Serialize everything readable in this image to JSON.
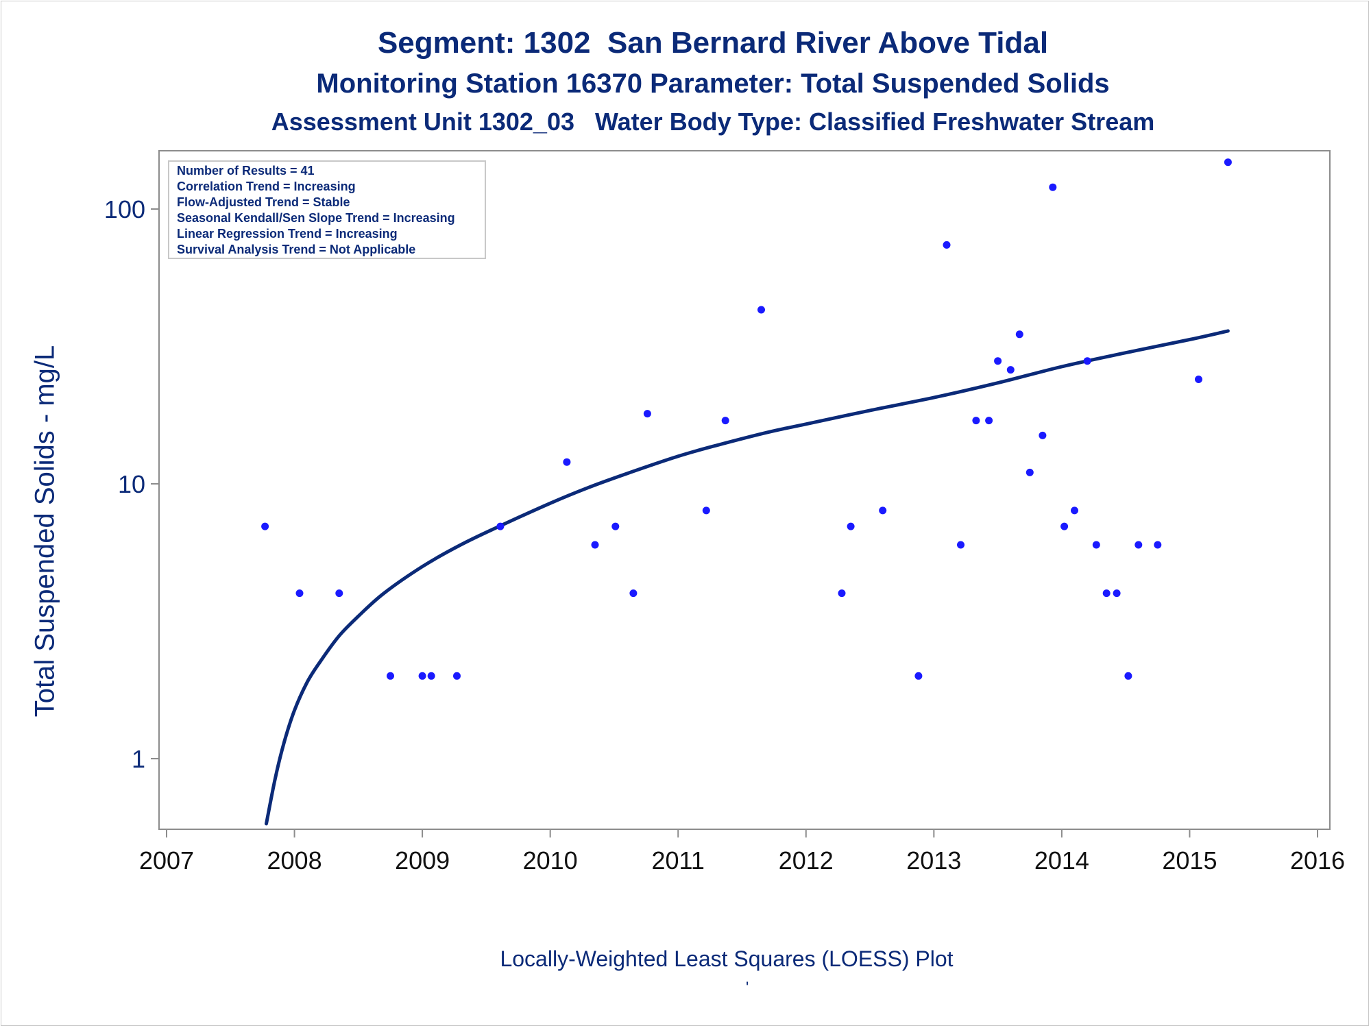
{
  "titles": {
    "line1": "Segment: 1302  San Bernard River Above Tidal",
    "line2": "Monitoring Station 16370 Parameter: Total Suspended Solids",
    "line3": "Assessment Unit 1302_03   Water Body Type: Classified Freshwater Stream"
  },
  "footnote": "Locally-Weighted Least Squares (LOESS) Plot",
  "footmark": "'",
  "colors": {
    "text": "#0b2a78",
    "points": "#1a1aff",
    "curve": "#0b2a78",
    "axis": "#8c8c8c"
  },
  "chart_data": {
    "type": "scatter",
    "title": "Segment: 1302  San Bernard River Above Tidal",
    "ylabel": "Total Suspended Solids - mg/L",
    "xlabel": "",
    "x_scale": "time",
    "y_scale": "log",
    "xlim": [
      2007,
      2016
    ],
    "ylim": [
      0.57,
      160
    ],
    "x_ticks": [
      "2007",
      "2008",
      "2009",
      "2010",
      "2011",
      "2012",
      "2013",
      "2014",
      "2015",
      "2016"
    ],
    "y_ticks": [
      "1",
      "10",
      "100"
    ],
    "grid": false,
    "legend": "none",
    "stats_box": [
      "Number of Results = 41",
      "Correlation Trend = Increasing",
      "Flow-Adjusted Trend = Stable",
      "Seasonal Kendall/Sen Slope Trend = Increasing",
      "Linear Regression Trend = Increasing",
      "Survival Analysis Trend = Not Applicable"
    ],
    "series": [
      {
        "type": "scatter",
        "x": [
          2007.77,
          2008.04,
          2008.35,
          2008.75,
          2009.0,
          2009.07,
          2009.27,
          2009.61,
          2010.13,
          2010.35,
          2010.51,
          2010.65,
          2010.76,
          2011.22,
          2011.37,
          2011.65,
          2012.28,
          2012.35,
          2012.6,
          2012.88,
          2013.1,
          2013.21,
          2013.33,
          2013.43,
          2013.5,
          2013.6,
          2013.67,
          2013.75,
          2013.85,
          2013.93,
          2014.02,
          2014.1,
          2014.2,
          2014.27,
          2014.35,
          2014.43,
          2014.52,
          2014.6,
          2014.75,
          2015.07,
          2015.3
        ],
        "values": [
          7,
          4,
          4,
          2,
          2,
          2,
          2,
          7,
          12,
          6,
          7,
          4,
          18,
          8,
          17,
          43,
          4,
          7,
          8,
          2,
          74,
          6,
          17,
          17,
          28,
          26,
          35,
          11,
          15,
          120,
          7,
          8,
          28,
          6,
          4,
          4,
          2,
          6,
          6,
          24,
          148
        ]
      },
      {
        "type": "line",
        "x": [
          2007.78,
          2007.85,
          2007.92,
          2008.0,
          2008.1,
          2008.2,
          2008.35,
          2008.5,
          2008.7,
          2009.0,
          2009.3,
          2009.6,
          2010.0,
          2010.3,
          2010.6,
          2011.0,
          2011.3,
          2011.7,
          2012.0,
          2012.5,
          2013.0,
          2013.5,
          2014.0,
          2014.5,
          2015.0,
          2015.3
        ],
        "values": [
          0.58,
          0.85,
          1.15,
          1.5,
          1.9,
          2.25,
          2.8,
          3.3,
          4.0,
          5.0,
          6.0,
          7.0,
          8.5,
          9.7,
          10.9,
          12.6,
          13.8,
          15.4,
          16.5,
          18.5,
          20.6,
          23.3,
          26.7,
          30.0,
          33.5,
          36.0
        ]
      }
    ]
  }
}
